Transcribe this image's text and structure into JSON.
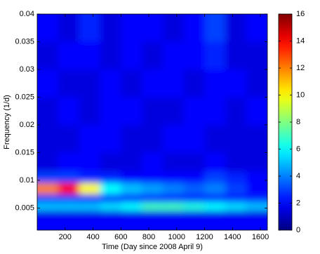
{
  "chart_data": {
    "type": "heatmap",
    "xlabel": "Time (Day since 2008 April 9)",
    "ylabel": "Frequency (1/d)",
    "x": [
      0,
      150,
      300,
      450,
      600,
      750,
      900,
      1050,
      1200,
      1350,
      1500,
      1650
    ],
    "y": [
      0.001,
      0.0035,
      0.0045,
      0.006,
      0.0075,
      0.0095,
      0.0115,
      0.015,
      0.02,
      0.025,
      0.03,
      0.035,
      0.04
    ],
    "z": [
      [
        2,
        2,
        2,
        2,
        2,
        2,
        2,
        2,
        2,
        2,
        2
      ],
      [
        1.5,
        1.5,
        1.5,
        1.5,
        1.5,
        1.5,
        1.5,
        1.5,
        1.5,
        1.5,
        1.5
      ],
      [
        5,
        5,
        5,
        5.5,
        6,
        7,
        7,
        6.5,
        6,
        5.5,
        5
      ],
      [
        3,
        3,
        2.5,
        2.5,
        2.5,
        2.5,
        2.5,
        2.5,
        2.5,
        2.5,
        2.5
      ],
      [
        12,
        14,
        10,
        6,
        5,
        4.5,
        4,
        3.5,
        4,
        3,
        2
      ],
      [
        3,
        3,
        2.5,
        2.5,
        2,
        2,
        2,
        2,
        3,
        2.5,
        2
      ],
      [
        1.5,
        2,
        2,
        1.5,
        1.5,
        2,
        1.5,
        1.5,
        2,
        1.5,
        1.5
      ],
      [
        1.5,
        1.5,
        2,
        2,
        1.5,
        1.5,
        2,
        2,
        1.5,
        1.5,
        1.5
      ],
      [
        1.5,
        2,
        1.5,
        2,
        2,
        1.5,
        1.5,
        2,
        2,
        1.5,
        2
      ],
      [
        2,
        1.5,
        1.5,
        2,
        1.5,
        2,
        2,
        1.5,
        2,
        2,
        1.5
      ],
      [
        1.5,
        2,
        2,
        1.5,
        2,
        1.5,
        2,
        2,
        2.5,
        1.5,
        1.5
      ],
      [
        2,
        1.5,
        2.5,
        1.5,
        2,
        2,
        1.5,
        2,
        3,
        1.5,
        2
      ]
    ],
    "xlim": [
      0,
      1650
    ],
    "ylim": [
      0.001,
      0.04
    ],
    "xticks": [
      200,
      400,
      600,
      800,
      1000,
      1200,
      1400,
      1600
    ],
    "yticks": [
      0.005,
      0.01,
      0.015,
      0.02,
      0.025,
      0.03,
      0.035,
      0.04
    ],
    "clim": [
      0,
      16
    ],
    "cticks": [
      0,
      2,
      4,
      6,
      8,
      10,
      12,
      14,
      16
    ],
    "colormap": "jet"
  }
}
